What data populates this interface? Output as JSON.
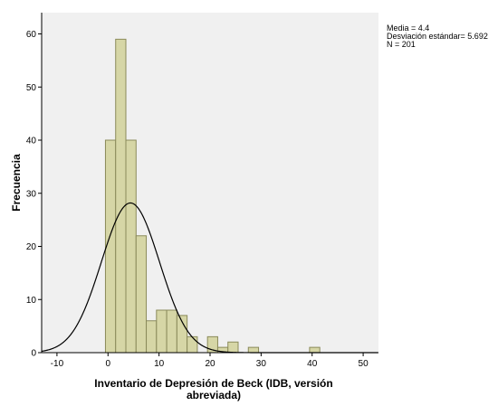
{
  "chart_data": {
    "type": "bar",
    "subtype": "histogram",
    "xlabel_lines": [
      "Inventario de Depresión de Beck (IDB, versión",
      "abreviada)"
    ],
    "ylabel": "Frecuencia",
    "xlim": [
      -13,
      53
    ],
    "ylim": [
      0,
      64
    ],
    "x_ticks": [
      -10,
      0,
      10,
      20,
      30,
      40,
      50
    ],
    "x_tick_labels": [
      "-10",
      "0",
      "10",
      "20",
      "30",
      "40",
      "50"
    ],
    "y_ticks": [
      0,
      10,
      20,
      30,
      40,
      50,
      60
    ],
    "y_tick_labels": [
      "0",
      "10",
      "20",
      "30",
      "40",
      "50",
      "60"
    ],
    "bin_width": 2,
    "bins": [
      {
        "start": -0.5,
        "count": 40
      },
      {
        "start": 1.5,
        "count": 59
      },
      {
        "start": 3.5,
        "count": 40
      },
      {
        "start": 5.5,
        "count": 22
      },
      {
        "start": 7.5,
        "count": 6
      },
      {
        "start": 9.5,
        "count": 8
      },
      {
        "start": 11.5,
        "count": 8
      },
      {
        "start": 13.5,
        "count": 7
      },
      {
        "start": 15.5,
        "count": 3
      },
      {
        "start": 17.5,
        "count": 0
      },
      {
        "start": 19.5,
        "count": 3
      },
      {
        "start": 21.5,
        "count": 1
      },
      {
        "start": 23.5,
        "count": 2
      },
      {
        "start": 25.5,
        "count": 0
      },
      {
        "start": 27.5,
        "count": 1
      },
      {
        "start": 39.5,
        "count": 1
      }
    ],
    "normal_curve": {
      "mean": 4.4,
      "sd": 5.692,
      "n": 201
    },
    "stats_lines": [
      "Media = 4.4",
      "Desviación estándar= 5.692",
      "N = 201"
    ],
    "grid": false,
    "colors": {
      "plot_background": "#f0f0f0",
      "bar_fill": "#d6d6a6",
      "bar_stroke": "#8a8a5a",
      "curve": "#000000"
    }
  }
}
